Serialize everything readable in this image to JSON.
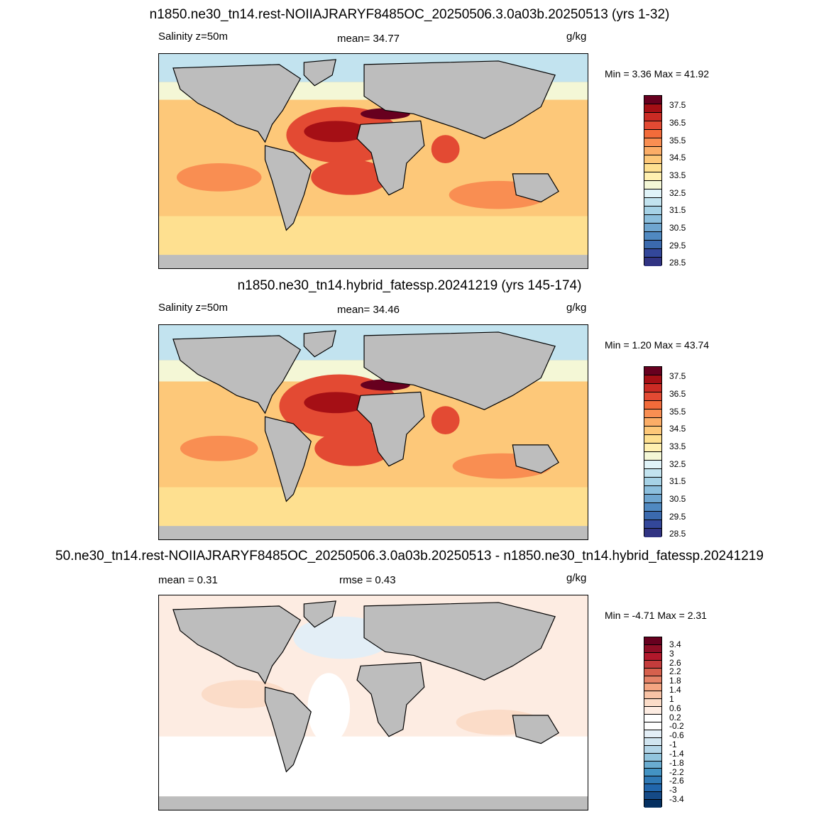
{
  "panels": [
    {
      "title": "n1850.ne30_tn14.rest-NOIIAJRARYF8485OC_20250506.3.0a03b.20250513 (yrs 1-32)",
      "left_label": "Salinity z=50m",
      "stat_label": "mean=  34.77",
      "units": "g/kg",
      "min_max": "Min =   3.36 Max =  41.92",
      "colorbar_labels": [
        "37.5",
        "36.5",
        "35.5",
        "34.5",
        "33.5",
        "32.5",
        "31.5",
        "30.5",
        "29.5",
        "28.5"
      ],
      "colors": [
        "#67001f",
        "#a50f15",
        "#cb2b24",
        "#e34a33",
        "#f26b3a",
        "#f98e52",
        "#fbad67",
        "#fdc879",
        "#fee090",
        "#fff0b0",
        "#f4f7d6",
        "#e0f3f8",
        "#c2e3ef",
        "#a6d2e6",
        "#8cbfdd",
        "#6fa6d0",
        "#5089c1",
        "#3b6aae",
        "#33479a",
        "#313483"
      ]
    },
    {
      "title": "n1850.ne30_tn14.hybrid_fatessp.20241219 (yrs 145-174)",
      "left_label": "Salinity z=50m",
      "stat_label": "mean=  34.46",
      "units": "g/kg",
      "min_max": "Min =   1.20 Max =  43.74",
      "colorbar_labels": [
        "37.5",
        "36.5",
        "35.5",
        "34.5",
        "33.5",
        "32.5",
        "31.5",
        "30.5",
        "29.5",
        "28.5"
      ],
      "colors": [
        "#67001f",
        "#a50f15",
        "#cb2b24",
        "#e34a33",
        "#f26b3a",
        "#f98e52",
        "#fbad67",
        "#fdc879",
        "#fee090",
        "#fff0b0",
        "#f4f7d6",
        "#e0f3f8",
        "#c2e3ef",
        "#a6d2e6",
        "#8cbfdd",
        "#6fa6d0",
        "#5089c1",
        "#3b6aae",
        "#33479a",
        "#313483"
      ]
    },
    {
      "title": "50.ne30_tn14.rest-NOIIAJRARYF8485OC_20250506.3.0a03b.20250513 - n1850.ne30_tn14.hybrid_fatessp.20241219",
      "left_label": "mean =   0.31",
      "stat_label": "rmse =   0.43",
      "units": "g/kg",
      "min_max": "Min =  -4.71 Max =   2.31",
      "colorbar_labels": [
        "3.4",
        "3",
        "2.6",
        "2.2",
        "1.8",
        "1.4",
        "1",
        "0.6",
        "0.2",
        "-0.2",
        "-0.6",
        "-1",
        "-1.4",
        "-1.8",
        "-2.2",
        "-2.6",
        "-3",
        "-3.4"
      ],
      "colors": [
        "#67001f",
        "#8e0d25",
        "#b2182b",
        "#c43c3c",
        "#d6604d",
        "#e58368",
        "#f4a582",
        "#f8c3a6",
        "#fbdcc8",
        "#fdece2",
        "#ffffff",
        "#ffffff",
        "#e3eef6",
        "#d1e5f0",
        "#b4d6e8",
        "#92c5de",
        "#6aacd0",
        "#4393c3",
        "#2f79b5",
        "#2166ac",
        "#154a87",
        "#053061"
      ]
    }
  ],
  "map_colors": {
    "land": "#bdbdbd",
    "coast": "#000000"
  }
}
